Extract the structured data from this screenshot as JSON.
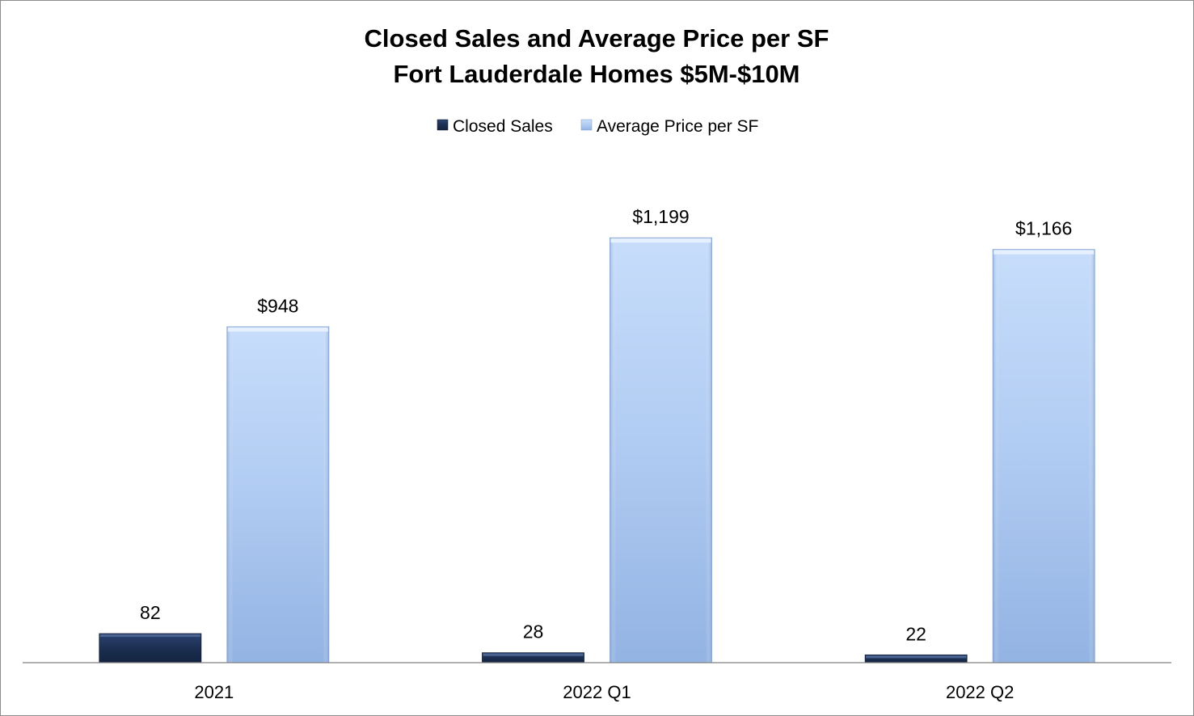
{
  "chart_data": {
    "type": "bar",
    "title": "Closed Sales and Average Price per SF",
    "subtitle": "Fort Lauderdale Homes $5M-$10M",
    "categories": [
      "2021",
      "2022 Q1",
      "2022 Q2"
    ],
    "series": [
      {
        "name": "Closed Sales",
        "values": [
          82,
          28,
          22
        ],
        "labels": [
          "82",
          "28",
          "22"
        ],
        "color": "#1f3458"
      },
      {
        "name": "Average Price per SF",
        "values": [
          948,
          1199,
          1166
        ],
        "labels": [
          "$948",
          "$1,199",
          "$1,166"
        ],
        "color": "#a9c5ef"
      }
    ],
    "ylim": [
      0,
      1450
    ],
    "xlabel": "",
    "ylabel": "",
    "grid": false,
    "legend": "top-center"
  }
}
